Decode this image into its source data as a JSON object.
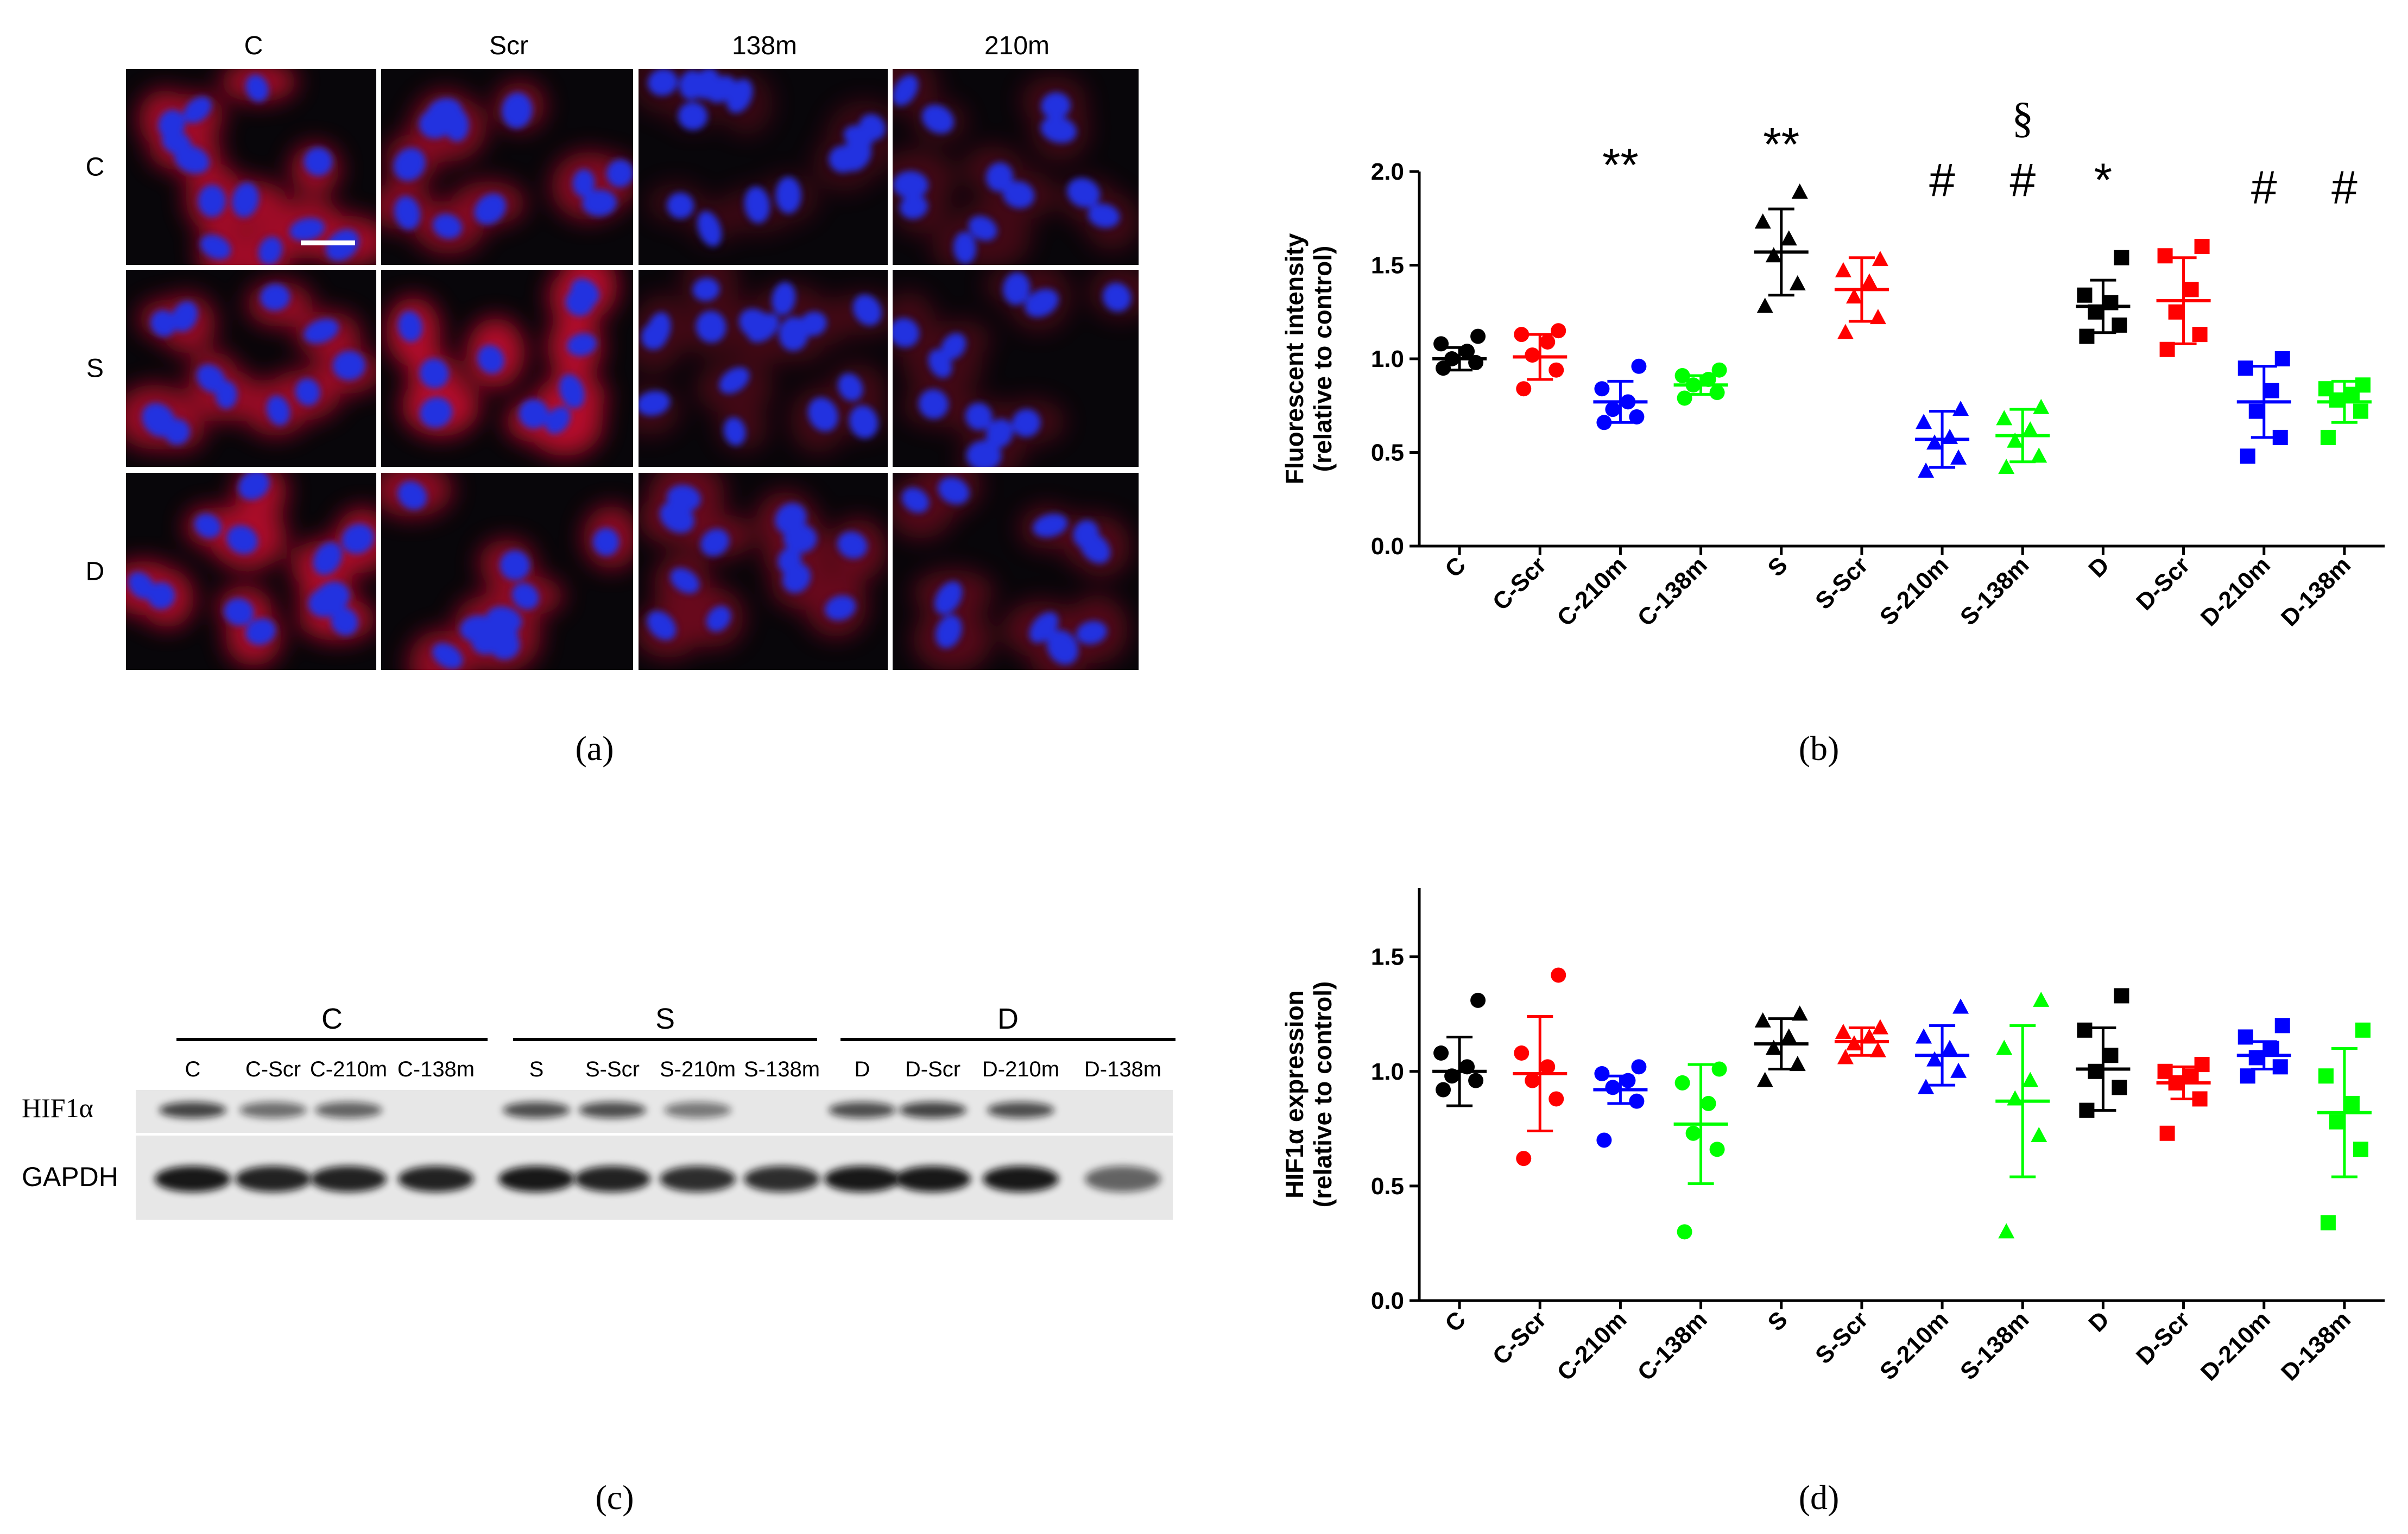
{
  "panel_labels": {
    "a": "(a)",
    "b": "(b)",
    "c": "(c)",
    "d": "(d)"
  },
  "micrographs": {
    "col_labels": [
      "C",
      "Scr",
      "138m",
      "210m"
    ],
    "row_labels": [
      "C",
      "S",
      "D"
    ],
    "cells": [
      {
        "red": 0.8,
        "cells": 12
      },
      {
        "red": 0.65,
        "cells": 11
      },
      {
        "red": 0.25,
        "cells": 14
      },
      {
        "red": 0.3,
        "cells": 12
      },
      {
        "red": 0.75,
        "cells": 11
      },
      {
        "red": 0.9,
        "cells": 10
      },
      {
        "red": 0.3,
        "cells": 16
      },
      {
        "red": 0.3,
        "cells": 11
      },
      {
        "red": 0.85,
        "cells": 12
      },
      {
        "red": 0.7,
        "cells": 11
      },
      {
        "red": 0.5,
        "cells": 12
      },
      {
        "red": 0.4,
        "cells": 10
      }
    ],
    "colors": {
      "nucleus": "#2030e0",
      "cytoplasm": "#c8102e",
      "background": "#08060a"
    }
  },
  "western_blot": {
    "group_labels": [
      "C",
      "S",
      "D"
    ],
    "lane_labels": [
      "C",
      "C-Scr",
      "C-210m",
      "C-138m",
      "S",
      "S-Scr",
      "S-210m",
      "S-138m",
      "D",
      "D-Scr",
      "D-210m",
      "D-138m"
    ],
    "row_labels": [
      "HIF1α",
      "GAPDH"
    ],
    "hif1a_band_intensity": [
      0.75,
      0.55,
      0.6,
      0.0,
      0.7,
      0.7,
      0.5,
      0.0,
      0.7,
      0.75,
      0.7,
      0.0
    ],
    "gapdh_band_intensity": [
      0.95,
      0.9,
      0.9,
      0.9,
      0.95,
      0.9,
      0.85,
      0.85,
      0.95,
      0.95,
      0.95,
      0.6
    ]
  },
  "chart_data": [
    {
      "type": "scatter",
      "panel": "b",
      "title": "",
      "ylabel": "Fluorescent intensity",
      "ylabel2": "(relative to control)",
      "categories": [
        "C",
        "C-Scr",
        "C-210m",
        "C-138m",
        "S",
        "S-Scr",
        "S-210m",
        "S-138m",
        "D",
        "D-Scr",
        "D-210m",
        "D-138m"
      ],
      "ylim": [
        0.0,
        2.0
      ],
      "yticks": [
        "0.0",
        "0.5",
        "1.0",
        "1.5",
        "2.0"
      ],
      "colors": [
        "#000000",
        "#ff0000",
        "#0000ff",
        "#00ff00",
        "#000000",
        "#ff0000",
        "#0000ff",
        "#00ff00",
        "#000000",
        "#ff0000",
        "#0000ff",
        "#00ff00"
      ],
      "markers": [
        "circle",
        "circle",
        "circle",
        "circle",
        "triangle",
        "triangle",
        "triangle",
        "triangle",
        "square",
        "square",
        "square",
        "square"
      ],
      "means": [
        1.0,
        1.01,
        0.77,
        0.86,
        1.57,
        1.37,
        0.57,
        0.59,
        1.28,
        1.31,
        0.77,
        0.77
      ],
      "sd": [
        0.06,
        0.12,
        0.11,
        0.05,
        0.23,
        0.17,
        0.15,
        0.14,
        0.14,
        0.23,
        0.19,
        0.11
      ],
      "points": [
        [
          0.95,
          0.98,
          1.0,
          1.04,
          1.08,
          1.12
        ],
        [
          0.84,
          0.94,
          1.02,
          1.09,
          1.13,
          1.15
        ],
        [
          0.66,
          0.69,
          0.73,
          0.77,
          0.84,
          0.96
        ],
        [
          0.79,
          0.82,
          0.86,
          0.89,
          0.91,
          0.94
        ],
        [
          1.28,
          1.4,
          1.55,
          1.64,
          1.73,
          1.89
        ],
        [
          1.14,
          1.22,
          1.33,
          1.41,
          1.47,
          1.53
        ],
        [
          0.4,
          0.47,
          0.55,
          0.58,
          0.66,
          0.73
        ],
        [
          0.42,
          0.48,
          0.56,
          0.62,
          0.68,
          0.74
        ],
        [
          1.12,
          1.18,
          1.25,
          1.3,
          1.34,
          1.54
        ],
        [
          1.05,
          1.13,
          1.25,
          1.37,
          1.55,
          1.6
        ],
        [
          0.48,
          0.58,
          0.72,
          0.83,
          0.95,
          1.0
        ],
        [
          0.58,
          0.72,
          0.78,
          0.81,
          0.84,
          0.86
        ]
      ],
      "annotations": [
        {
          "category": "C-210m",
          "y": 1.95,
          "text": "**"
        },
        {
          "category": "S",
          "y": 2.06,
          "text": "**"
        },
        {
          "category": "S-210m",
          "y": 1.87,
          "text": "#"
        },
        {
          "category": "S-138m",
          "y": 1.87,
          "text": "#"
        },
        {
          "category": "S-138m",
          "y": 2.21,
          "text": "§"
        },
        {
          "category": "D",
          "y": 1.87,
          "text": "*"
        },
        {
          "category": "D-210m",
          "y": 1.83,
          "text": "#"
        },
        {
          "category": "D-138m",
          "y": 1.83,
          "text": "#"
        }
      ]
    },
    {
      "type": "scatter",
      "panel": "d",
      "title": "",
      "ylabel": "HIF1α expression",
      "ylabel2": "(relative to control)",
      "categories": [
        "C",
        "C-Scr",
        "C-210m",
        "C-138m",
        "S",
        "S-Scr",
        "S-210m",
        "S-138m",
        "D",
        "D-Scr",
        "D-210m",
        "D-138m"
      ],
      "ylim": [
        0.0,
        1.8
      ],
      "yticks": [
        "0.0",
        "0.5",
        "1.0",
        "1.5"
      ],
      "colors": [
        "#000000",
        "#ff0000",
        "#0000ff",
        "#00ff00",
        "#000000",
        "#ff0000",
        "#0000ff",
        "#00ff00",
        "#000000",
        "#ff0000",
        "#0000ff",
        "#00ff00"
      ],
      "markers": [
        "circle",
        "circle",
        "circle",
        "circle",
        "triangle",
        "triangle",
        "triangle",
        "triangle",
        "square",
        "square",
        "square",
        "square"
      ],
      "means": [
        1.0,
        0.99,
        0.92,
        0.77,
        1.12,
        1.13,
        1.07,
        0.87,
        1.01,
        0.95,
        1.07,
        0.82
      ],
      "sd": [
        0.15,
        0.25,
        0.06,
        0.26,
        0.11,
        0.06,
        0.13,
        0.33,
        0.18,
        0.07,
        0.06,
        0.28
      ],
      "points": [
        [
          0.92,
          0.96,
          0.98,
          1.02,
          1.08,
          1.31
        ],
        [
          0.62,
          0.88,
          0.96,
          1.02,
          1.08,
          1.42
        ],
        [
          0.7,
          0.87,
          0.93,
          0.96,
          0.99,
          1.02
        ],
        [
          0.3,
          0.66,
          0.73,
          0.86,
          0.95,
          1.01
        ],
        [
          0.96,
          1.03,
          1.1,
          1.15,
          1.22,
          1.25
        ],
        [
          1.06,
          1.09,
          1.12,
          1.15,
          1.17,
          1.19
        ],
        [
          0.93,
          1.0,
          1.05,
          1.1,
          1.15,
          1.28
        ],
        [
          0.3,
          0.72,
          0.88,
          0.96,
          1.1,
          1.31
        ],
        [
          0.83,
          0.93,
          1.0,
          1.07,
          1.18,
          1.33
        ],
        [
          0.73,
          0.88,
          0.95,
          0.98,
          1.0,
          1.03
        ],
        [
          0.98,
          1.02,
          1.06,
          1.1,
          1.15,
          1.2
        ],
        [
          0.34,
          0.66,
          0.78,
          0.86,
          0.98,
          1.18
        ]
      ],
      "annotations": []
    }
  ]
}
